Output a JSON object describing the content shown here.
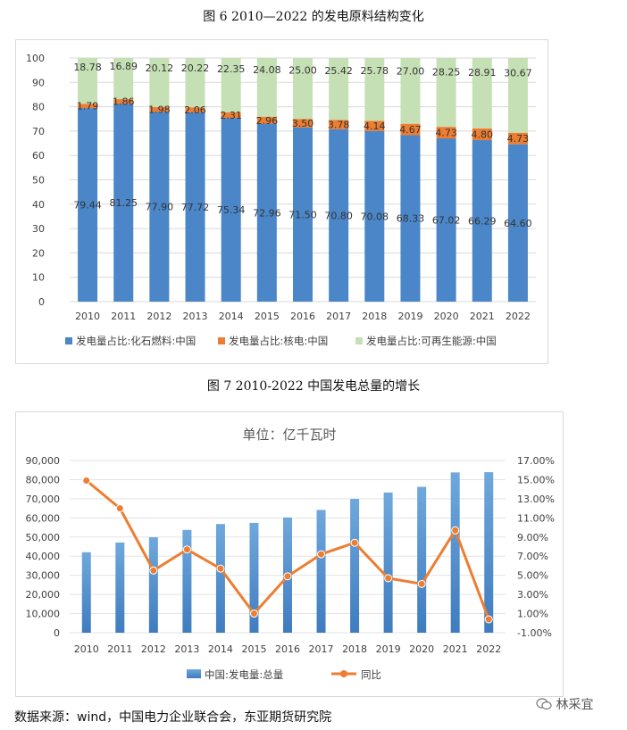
{
  "figure6_title": "图 6 2010—2022 的发电原料结构变化",
  "figure7_title": "图 7  2010-2022 中国发电总量的增长",
  "source_note": "数据来源：wind，中国电力企业联合会，东亚期货研究院",
  "watermark": "林采宜",
  "colors": {
    "fossil": "#4a86c8",
    "nuclear": "#ed7d31",
    "renewable": "#c5e0b4",
    "bar": "#5b9bd5",
    "line": "#ed7d31"
  },
  "chart_data": [
    {
      "type": "bar",
      "stacked": true,
      "categories": [
        "2010",
        "2011",
        "2012",
        "2013",
        "2014",
        "2015",
        "2016",
        "2017",
        "2018",
        "2019",
        "2020",
        "2021",
        "2022"
      ],
      "ylim": [
        0,
        100
      ],
      "yticks": [
        0,
        10,
        20,
        30,
        40,
        50,
        60,
        70,
        80,
        90,
        100
      ],
      "grid": true,
      "legend_position": "bottom",
      "series": [
        {
          "name": "发电量占比:化石燃料:中国",
          "values": [
            79.44,
            81.25,
            77.9,
            77.72,
            75.34,
            72.96,
            71.5,
            70.8,
            70.08,
            68.33,
            67.02,
            66.29,
            64.6
          ],
          "labels": [
            "79.44",
            "81.25",
            "77.90",
            "77.72",
            "75.34",
            "72.96",
            "71.50",
            "70.80",
            "70.08",
            "68.33",
            "67.02",
            "66.29",
            "64.60"
          ]
        },
        {
          "name": "发电量占比:核电:中国",
          "values": [
            1.79,
            1.86,
            1.98,
            2.06,
            2.31,
            2.96,
            3.5,
            3.78,
            4.14,
            4.67,
            4.73,
            4.8,
            4.73
          ],
          "labels": [
            "1.79",
            "1.86",
            "1.98",
            "2.06",
            "2.31",
            "2.96",
            "3.50",
            "3.78",
            "4.14",
            "4.67",
            "4.73",
            "4.80",
            "4.73"
          ]
        },
        {
          "name": "发电量占比:可再生能源:中国",
          "values": [
            18.78,
            16.89,
            20.12,
            20.22,
            22.35,
            24.08,
            25.0,
            25.42,
            25.78,
            27.0,
            28.25,
            28.91,
            30.67
          ],
          "labels": [
            "18.78",
            "16.89",
            "20.12",
            "20.22",
            "22.35",
            "24.08",
            "25.00",
            "25.42",
            "25.78",
            "27.00",
            "28.25",
            "28.91",
            "30.67"
          ]
        }
      ]
    },
    {
      "type": "bar+line",
      "title": "单位：亿千瓦时",
      "categories": [
        "2010",
        "2011",
        "2012",
        "2013",
        "2014",
        "2015",
        "2016",
        "2017",
        "2018",
        "2019",
        "2020",
        "2021",
        "2022"
      ],
      "ylim": [
        0,
        90000
      ],
      "yticks": [
        "0",
        "10,000",
        "20,000",
        "30,000",
        "40,000",
        "50,000",
        "60,000",
        "70,000",
        "80,000",
        "90,000"
      ],
      "y2lim": [
        -1,
        17
      ],
      "y2ticks": [
        "-1.00%",
        "1.00%",
        "3.00%",
        "5.00%",
        "7.00%",
        "9.00%",
        "11.00%",
        "13.00%",
        "15.00%",
        "17.00%"
      ],
      "legend_position": "bottom",
      "series": [
        {
          "name": "中国:发电量:总量",
          "type": "bar",
          "axis": "left",
          "values": [
            42070,
            47130,
            49876,
            53721,
            56801,
            57400,
            60228,
            64171,
            69940,
            73253,
            76236,
            83768,
            83886
          ]
        },
        {
          "name": "同比",
          "type": "line",
          "axis": "right",
          "values": [
            14.9,
            12.0,
            5.5,
            7.7,
            5.7,
            1.0,
            4.9,
            7.2,
            8.4,
            4.7,
            4.1,
            9.7,
            0.4
          ]
        }
      ]
    }
  ]
}
